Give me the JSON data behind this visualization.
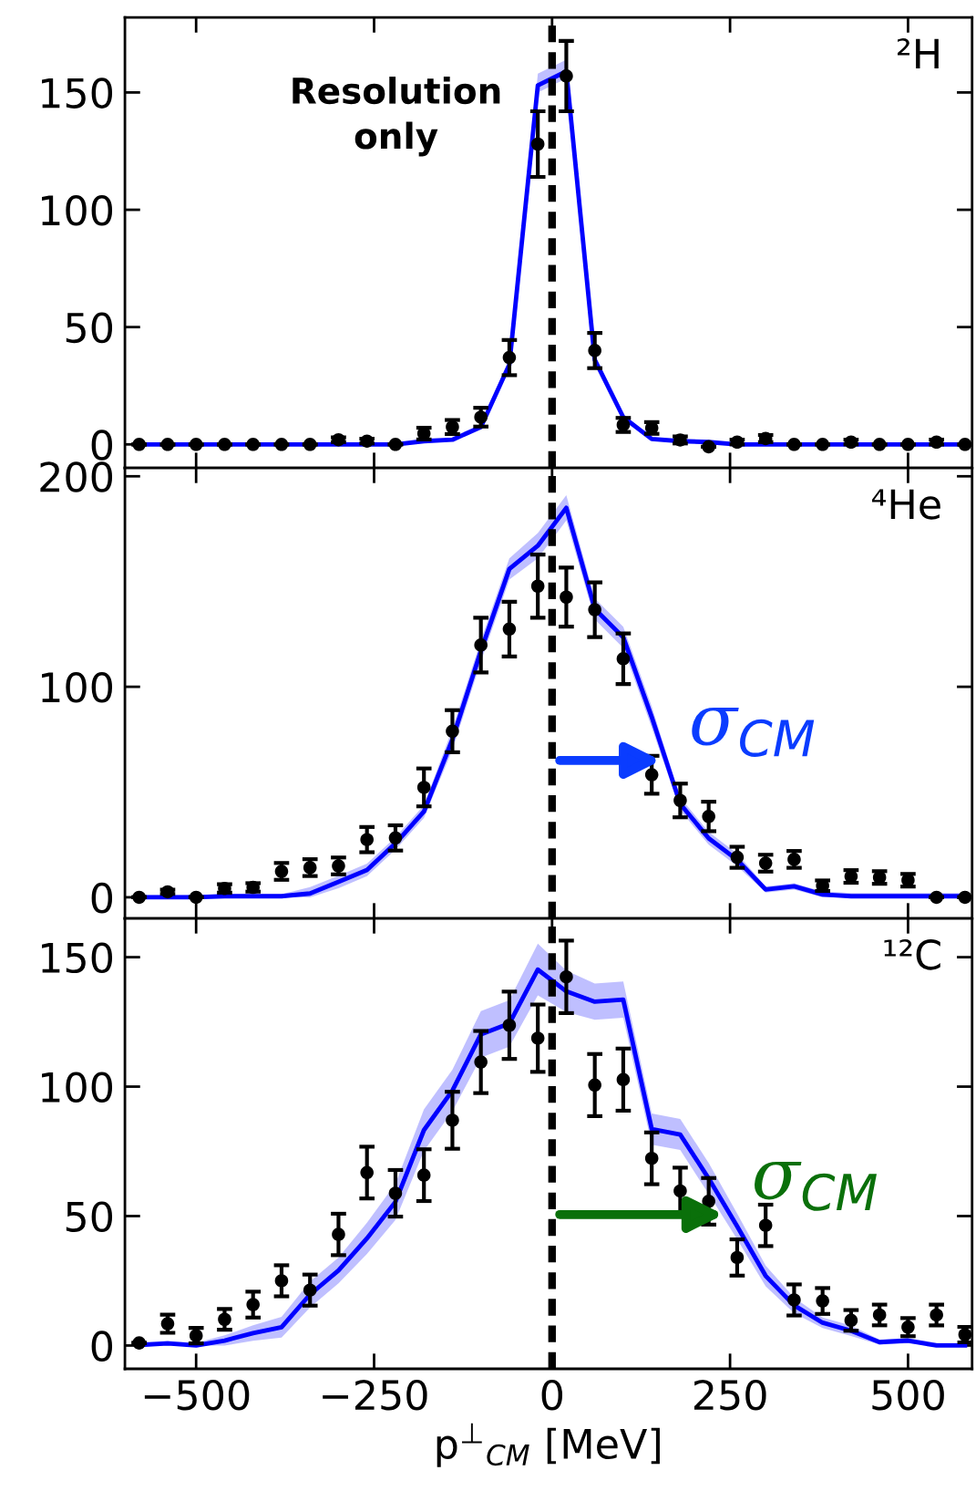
{
  "chart_data": [
    {
      "type": "scatter",
      "title": "²H",
      "annotations": [
        "Resolution\nonly"
      ],
      "x": [
        -580,
        -540,
        -500,
        -460,
        -420,
        -380,
        -340,
        -300,
        -260,
        -220,
        -180,
        -140,
        -100,
        -60,
        -20,
        20,
        60,
        100,
        140,
        180,
        220,
        260,
        300,
        340,
        380,
        420,
        460,
        500,
        540,
        580
      ],
      "xlim": [
        -600,
        590
      ],
      "ylim": [
        -10,
        182
      ],
      "yticks": [
        0,
        50,
        100,
        150
      ],
      "tick_labels": "y",
      "grid": false,
      "legend": false,
      "ref_lines": [
        {
          "axis": "x",
          "value": 0,
          "color": "#000000",
          "line_style": "dashed"
        }
      ],
      "series": [
        {
          "type": "line",
          "color": "#0000ff",
          "line_style": "solid",
          "values": [
            0,
            0,
            0,
            0,
            0,
            0,
            0,
            0,
            0,
            0,
            1.4,
            2,
            7.4,
            34,
            153,
            159,
            36,
            11.6,
            2.3,
            1.4,
            1,
            0,
            0,
            0,
            0,
            0,
            0,
            0,
            0,
            0
          ],
          "lower": [
            0,
            0,
            0,
            0,
            0,
            0,
            0,
            0,
            0,
            0,
            1.4,
            2,
            7.4,
            34,
            150,
            156,
            36,
            11.6,
            2.3,
            1.4,
            1,
            0,
            0,
            0,
            0,
            0,
            0,
            0,
            0,
            0
          ],
          "upper": [
            0,
            0,
            0,
            0,
            0,
            0,
            0,
            0,
            0,
            0,
            1.4,
            2,
            7.4,
            34,
            158,
            164,
            36,
            11.6,
            2.3,
            1.4,
            1,
            0,
            0,
            0,
            0,
            0,
            0,
            0,
            0,
            0
          ]
        },
        {
          "color": "#000000",
          "marker": "circle",
          "values": [
            0,
            0,
            0,
            0,
            0,
            0,
            0,
            2,
            1.4,
            0,
            4.6,
            7.4,
            11.6,
            37,
            128,
            157,
            40,
            8.3,
            7,
            1.9,
            -1,
            1,
            2.5,
            0,
            0,
            1,
            0,
            0,
            1,
            0
          ],
          "errors": [
            null,
            null,
            null,
            null,
            null,
            null,
            null,
            1,
            1,
            null,
            2.5,
            3,
            4,
            7.5,
            14,
            15,
            7.5,
            3,
            2.5,
            1.5,
            null,
            1,
            1.5,
            null,
            null,
            1,
            null,
            null,
            1,
            null
          ]
        }
      ]
    },
    {
      "type": "scatter",
      "title": "⁴He",
      "annotations": [
        {
          "text": "σ$_{CM}$",
          "x": 153,
          "y": 65
        }
      ],
      "x": [
        -580,
        -540,
        -500,
        -460,
        -420,
        -380,
        -340,
        -300,
        -260,
        -220,
        -180,
        -140,
        -100,
        -60,
        -20,
        20,
        60,
        100,
        140,
        180,
        220,
        260,
        300,
        340,
        380,
        420,
        460,
        500,
        540,
        580
      ],
      "xlim": [
        -600,
        590
      ],
      "ylim": [
        -10,
        204
      ],
      "yticks": [
        0,
        100,
        200
      ],
      "tick_labels": "y",
      "grid": false,
      "legend": false,
      "ref_lines": [
        {
          "axis": "x",
          "value": 0,
          "color": "#000000",
          "line_style": "dashed"
        }
      ],
      "series": [
        {
          "type": "line",
          "color": "#0000ff",
          "line_style": "solid",
          "values": [
            0,
            0,
            0,
            0.5,
            0.5,
            0.5,
            1.8,
            7.3,
            13,
            25.6,
            40.7,
            75,
            117,
            156,
            167,
            185,
            137,
            123.5,
            85.6,
            44.4,
            28,
            17.8,
            3.7,
            5.2,
            1.3,
            0.5,
            0.5,
            0.5,
            0.5,
            0.5
          ],
          "lower": [
            0,
            0,
            0,
            0,
            0,
            0,
            0,
            4.3,
            10,
            22.6,
            37.7,
            70,
            112,
            151,
            161,
            179,
            132,
            118.5,
            80.6,
            41.4,
            25,
            14.8,
            2.2,
            3.7,
            0,
            0,
            0,
            0,
            0,
            0
          ],
          "upper": [
            1,
            1,
            1,
            1.5,
            1.5,
            1.5,
            4.8,
            10.3,
            16,
            28.6,
            43.7,
            80,
            122,
            161,
            173,
            191,
            142,
            128.5,
            90.6,
            47.4,
            31,
            20.8,
            5.2,
            6.7,
            2.8,
            2,
            2,
            2,
            2,
            2
          ]
        },
        {
          "color": "#000000",
          "marker": "circle",
          "values": [
            0,
            2.6,
            0,
            4.2,
            4.7,
            12.3,
            14.1,
            14.9,
            27.4,
            28.2,
            52.2,
            78.9,
            119.8,
            127.4,
            147.8,
            142.6,
            136.6,
            113.3,
            58.2,
            46,
            38.4,
            19,
            16.2,
            18,
            5.5,
            9.9,
            9.4,
            8.1,
            0,
            0
          ],
          "errors": [
            null,
            1,
            null,
            2,
            2,
            4,
            4,
            4,
            6,
            6,
            9,
            10,
            13,
            13,
            15,
            14,
            13,
            12,
            9,
            8,
            7,
            5,
            4,
            4,
            2.5,
            3,
            3,
            3,
            null,
            null
          ]
        }
      ]
    },
    {
      "type": "scatter",
      "title": "¹²C",
      "xlabel": "p$^{⊥}$$_{CM}$ [MeV]",
      "annotations": [
        {
          "text": "σ$_{CM}$",
          "x": 241,
          "y": 50.6
        }
      ],
      "x": [
        -580,
        -540,
        -500,
        -460,
        -420,
        -380,
        -340,
        -300,
        -260,
        -220,
        -180,
        -140,
        -100,
        -60,
        -20,
        20,
        60,
        100,
        140,
        180,
        220,
        260,
        300,
        340,
        380,
        420,
        460,
        500,
        540,
        580
      ],
      "xlim": [
        -600,
        590
      ],
      "ylim": [
        -9,
        165
      ],
      "yticks": [
        0,
        50,
        100,
        150
      ],
      "xticks": [
        {
          "value": -500,
          "label": "−500"
        },
        {
          "value": -250,
          "label": "−250"
        },
        0,
        250,
        500
      ],
      "grid": false,
      "legend": false,
      "ref_lines": [
        {
          "axis": "x",
          "value": 0,
          "color": "#000000",
          "line_style": "dashed"
        }
      ],
      "series": [
        {
          "type": "line",
          "color": "#0000ff",
          "line_style": "solid",
          "values": [
            0.2,
            0.8,
            0,
            1.9,
            4.8,
            7.1,
            19.7,
            29,
            41.4,
            55.5,
            83.2,
            98.5,
            120.2,
            124.4,
            145.2,
            136.8,
            132.8,
            133.6,
            83.6,
            81.5,
            64.5,
            46,
            26.9,
            15.5,
            8.8,
            5.7,
            1.3,
            1.9,
            0,
            0
          ],
          "lower": [
            0,
            0,
            0,
            0,
            1.8,
            3.1,
            14.7,
            24,
            35.4,
            48.5,
            75.2,
            90.5,
            111.2,
            115.4,
            135.2,
            128.8,
            125.8,
            126.6,
            77.6,
            75.5,
            58.5,
            41,
            22.9,
            12.5,
            6.8,
            3.7,
            0.3,
            0.9,
            0,
            0
          ],
          "upper": [
            1.2,
            1.8,
            1,
            3.9,
            7.8,
            11.1,
            24.7,
            34,
            47.4,
            62.5,
            91.2,
            106.5,
            129.2,
            133.4,
            155.2,
            144.8,
            139.8,
            140.6,
            89.6,
            87.5,
            70.5,
            51,
            30.9,
            18.5,
            10.8,
            7.7,
            2.3,
            2.9,
            1,
            1
          ]
        },
        {
          "color": "#000000",
          "marker": "circle",
          "values": [
            1,
            8.4,
            3.8,
            10.1,
            15.8,
            25,
            21.4,
            42.9,
            66.8,
            58.8,
            65.8,
            87,
            109.5,
            123.7,
            118.7,
            142.4,
            100.6,
            102.7,
            72.3,
            59.7,
            55.7,
            34,
            46.4,
            17.6,
            17.2,
            9.7,
            11.8,
            7.1,
            11.8,
            4.2
          ],
          "errors": [
            null,
            3.5,
            3,
            4,
            5,
            6,
            6,
            8,
            10,
            9,
            10,
            11,
            12,
            13,
            13,
            14,
            12,
            12,
            10,
            9,
            9,
            7,
            8,
            6,
            5,
            4,
            4,
            3.5,
            4,
            3
          ]
        }
      ]
    }
  ]
}
